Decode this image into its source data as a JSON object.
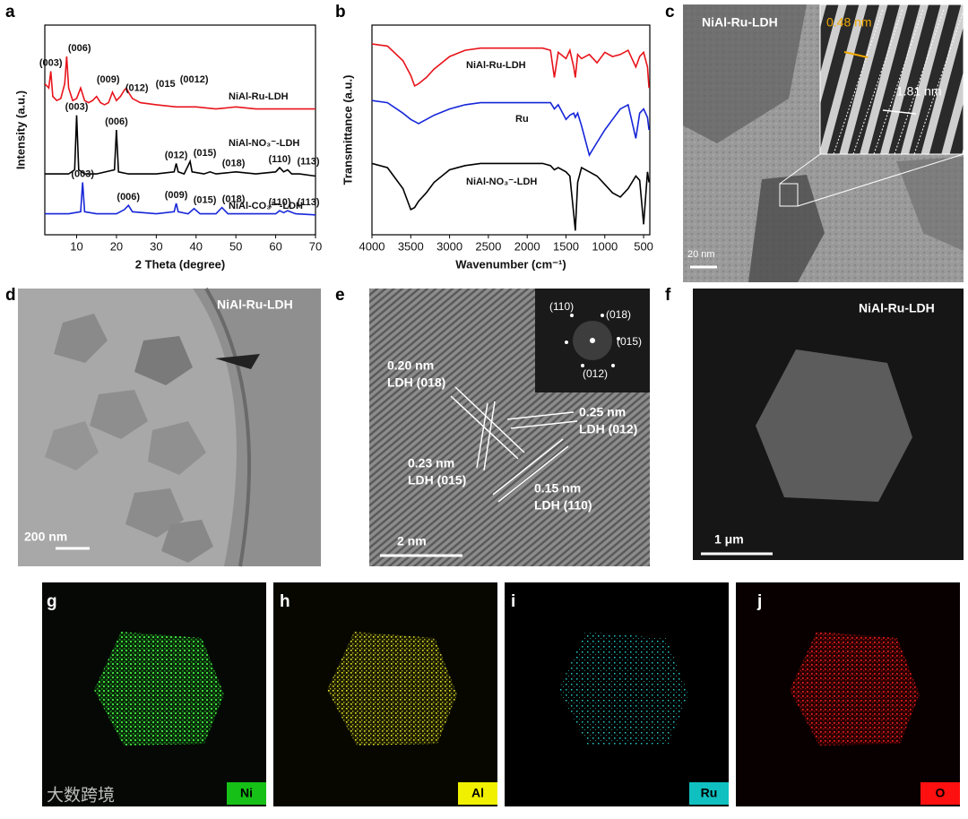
{
  "chart_data": [
    {
      "type": "line",
      "xlabel": "2 Theta (degree)",
      "ylabel": "Intensity (a.u.)",
      "xlim": [
        2,
        70
      ],
      "xticks": [
        10,
        20,
        30,
        40,
        50,
        60,
        70
      ],
      "ylim": [
        0,
        100
      ],
      "series": [
        {
          "name": "NiAl-Ru-LDH",
          "color": "#e8141b",
          "x": [
            2,
            3,
            3.5,
            4,
            5,
            6,
            7,
            7.5,
            8,
            9,
            10,
            11,
            12,
            13,
            14,
            15,
            16,
            17,
            18,
            19,
            20,
            21,
            22,
            22.5,
            23,
            24,
            26,
            30,
            35,
            40,
            45,
            50,
            55,
            60,
            65,
            70
          ],
          "values": [
            72,
            70,
            78,
            66,
            64,
            65,
            72,
            85,
            70,
            64,
            65,
            70,
            64,
            63,
            64,
            66,
            63,
            62,
            63,
            68,
            64,
            66,
            69,
            70,
            68,
            65,
            63,
            62,
            61,
            61,
            60,
            61,
            60,
            60,
            60,
            60
          ],
          "peak_labels": [
            {
              "label": "(003)",
              "x": 3.5
            },
            {
              "label": "(006)",
              "x": 7.5
            },
            {
              "label": "(009)",
              "x": 11
            },
            {
              "label": "(012)",
              "x": 15
            },
            {
              "label": "(015",
              "x": 19
            },
            {
              "label": "(0012)",
              "x": 22.5
            }
          ]
        },
        {
          "name": "NiAl-NO₃⁻-LDH",
          "color": "#000000",
          "x": [
            2,
            5,
            8,
            9.5,
            10,
            10.5,
            12,
            15,
            19.5,
            20,
            20.5,
            23,
            30,
            34.5,
            35,
            35.5,
            37,
            38,
            38.5,
            39,
            42,
            43.5,
            45,
            50,
            55,
            60,
            61,
            62,
            63,
            64,
            66,
            70
          ],
          "values": [
            29,
            29,
            29,
            31,
            57,
            31,
            29,
            29,
            31,
            50,
            30,
            29,
            29,
            30,
            34,
            30,
            29,
            33,
            35,
            30,
            29,
            30,
            29,
            30,
            29,
            30,
            32,
            30,
            31,
            29,
            29,
            28
          ],
          "peak_labels": [
            {
              "label": "(003)",
              "x": 10
            },
            {
              "label": "(006)",
              "x": 20
            },
            {
              "label": "(012)",
              "x": 35
            },
            {
              "label": "(015)",
              "x": 38.5
            },
            {
              "label": "(018)",
              "x": 43.5
            },
            {
              "label": "(110)",
              "x": 61
            },
            {
              "label": "(113)",
              "x": 63
            }
          ]
        },
        {
          "name": "NiAl-CO₃²⁻-LDH",
          "color": "#1626d8",
          "x": [
            2,
            8,
            11,
            11.5,
            12,
            15,
            20,
            22,
            23,
            24,
            30,
            34.5,
            35,
            35.5,
            38,
            39.5,
            41,
            45,
            46.5,
            48,
            55,
            60,
            61,
            62,
            63,
            65,
            70
          ],
          "values": [
            10,
            10,
            11,
            25,
            11,
            10,
            10,
            12,
            14,
            11,
            10,
            11,
            15,
            11,
            10,
            12.5,
            10,
            10,
            13,
            10,
            10,
            10,
            11.5,
            10.5,
            11.5,
            10,
            9.5
          ],
          "peak_labels": [
            {
              "label": "(003)",
              "x": 11.5
            },
            {
              "label": "(006)",
              "x": 23
            },
            {
              "label": "(009)",
              "x": 35
            },
            {
              "label": "(015)",
              "x": 39.5
            },
            {
              "label": "(018)",
              "x": 46.5
            },
            {
              "label": "(110)",
              "x": 61
            },
            {
              "label": "(113)",
              "x": 63
            }
          ]
        }
      ]
    },
    {
      "type": "line",
      "xlabel": "Wavenumber (cm⁻¹)",
      "ylabel": "Transmittance (a.u.)",
      "xlim": [
        4000,
        420
      ],
      "xticks": [
        4000,
        3500,
        3000,
        2500,
        2000,
        1500,
        1000,
        500
      ],
      "ylim": [
        0,
        100
      ],
      "series": [
        {
          "name": "NiAl-Ru-LDH",
          "color": "#e8141b",
          "x": [
            4000,
            3800,
            3600,
            3500,
            3450,
            3400,
            3300,
            3200,
            3000,
            2800,
            2600,
            2400,
            2200,
            2000,
            1800,
            1700,
            1650,
            1600,
            1500,
            1450,
            1400,
            1380,
            1350,
            1300,
            1200,
            1100,
            1000,
            900,
            800,
            700,
            600,
            550,
            500,
            450,
            430
          ],
          "values": [
            91,
            90,
            83,
            76,
            71,
            72,
            75,
            79,
            85,
            88,
            89,
            89,
            89,
            89,
            89,
            88,
            75,
            87,
            84,
            88,
            80,
            75,
            86,
            84,
            86,
            82,
            87,
            85,
            86,
            88,
            80,
            85,
            87,
            80,
            70
          ]
        },
        {
          "name": "Ru",
          "color": "#1626d8",
          "x": [
            4000,
            3800,
            3600,
            3500,
            3450,
            3400,
            3300,
            3200,
            3000,
            2800,
            2600,
            2400,
            2200,
            2000,
            1800,
            1700,
            1650,
            1600,
            1500,
            1450,
            1400,
            1380,
            1350,
            1300,
            1200,
            1100,
            1000,
            900,
            800,
            700,
            600,
            550,
            500,
            450,
            430
          ],
          "values": [
            64,
            63,
            58,
            55,
            54,
            53,
            55,
            57,
            60,
            62,
            63,
            63,
            63,
            63,
            63,
            63,
            60,
            62,
            55,
            57,
            58,
            56,
            58,
            52,
            38,
            44,
            50,
            55,
            60,
            62,
            46,
            58,
            60,
            56,
            50
          ]
        },
        {
          "name": "NiAl-NO₃⁻-LDH",
          "color": "#000000",
          "x": [
            4000,
            3800,
            3600,
            3500,
            3450,
            3400,
            3300,
            3200,
            3000,
            2800,
            2600,
            2400,
            2200,
            2000,
            1800,
            1700,
            1650,
            1600,
            1500,
            1450,
            1400,
            1380,
            1350,
            1300,
            1200,
            1100,
            1000,
            900,
            800,
            700,
            600,
            550,
            500,
            450,
            430
          ],
          "values": [
            34,
            32,
            22,
            12,
            13,
            16,
            20,
            25,
            31,
            33,
            34,
            34,
            34,
            34,
            34,
            33,
            31,
            32,
            30,
            28,
            10,
            2,
            25,
            32,
            30,
            28,
            24,
            20,
            18,
            22,
            28,
            26,
            5,
            30,
            25
          ]
        }
      ]
    }
  ],
  "figure": {
    "panel_letters": [
      "a",
      "b",
      "c",
      "d",
      "e",
      "f",
      "g",
      "h",
      "i",
      "j"
    ],
    "c": {
      "sample": "NiAl-Ru-LDH",
      "spacing_1": "0.48 nm",
      "spacing_2": "1.81 nm",
      "scale": "20 nm"
    },
    "d": {
      "sample": "NiAl-Ru-LDH",
      "scale": "200 nm"
    },
    "e": {
      "fringes": [
        {
          "d": "0.20 nm",
          "plane": "LDH (018)"
        },
        {
          "d": "0.25 nm",
          "plane": "LDH (012)"
        },
        {
          "d": "0.23 nm",
          "plane": "LDH (015)"
        },
        {
          "d": "0.15 nm",
          "plane": "LDH (110)"
        }
      ],
      "fft": [
        "(110)",
        "(018)",
        "(015)",
        "(012)"
      ],
      "scale": "2 nm"
    },
    "f": {
      "sample": "NiAl-Ru-LDH",
      "scale": "1 μm"
    },
    "maps": [
      "Ni",
      "Al",
      "Ru",
      "O"
    ],
    "watermark": "大数跨境"
  }
}
